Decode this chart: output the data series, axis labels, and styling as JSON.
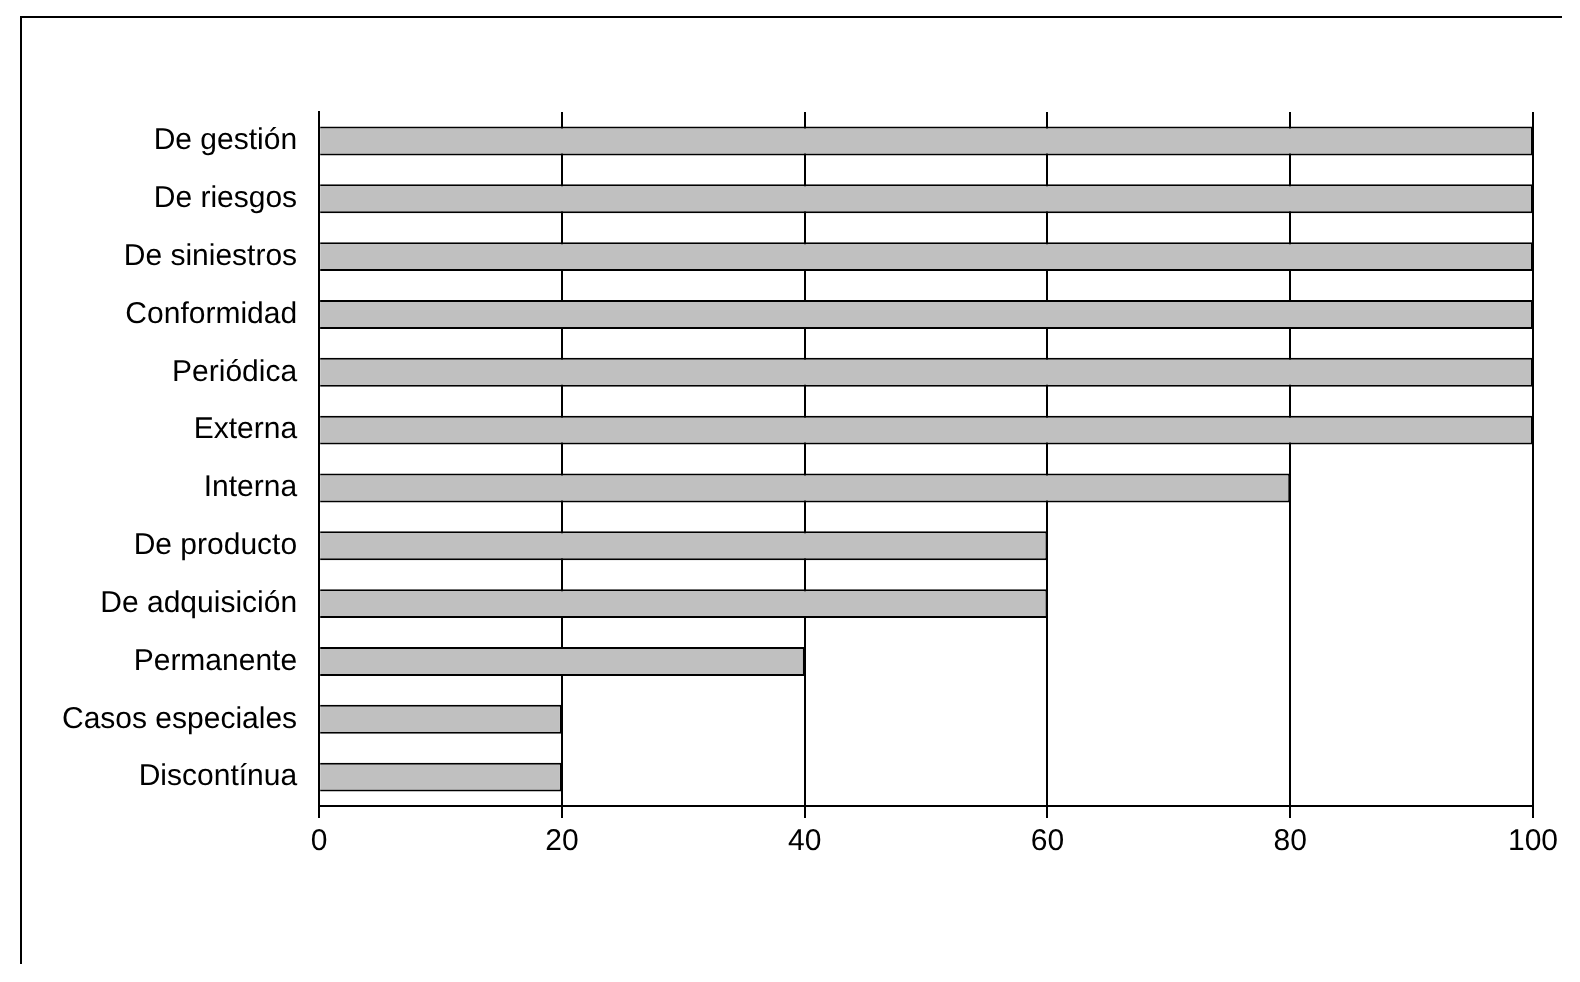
{
  "chart_data": {
    "type": "bar",
    "orientation": "horizontal",
    "categories": [
      "De gestión",
      "De riesgos",
      "De siniestros",
      "Conformidad",
      "Periódica",
      "Externa",
      "Interna",
      "De producto",
      "De adquisición",
      "Permanente",
      "Casos especiales",
      "Discontínua"
    ],
    "values": [
      100,
      100,
      100,
      100,
      100,
      100,
      80,
      60,
      60,
      40,
      20,
      20
    ],
    "color": "#c0c0c0",
    "xlim": [
      0,
      100
    ],
    "xticks": [
      0,
      20,
      40,
      60,
      80,
      100
    ],
    "grid": "x",
    "legend": false
  }
}
